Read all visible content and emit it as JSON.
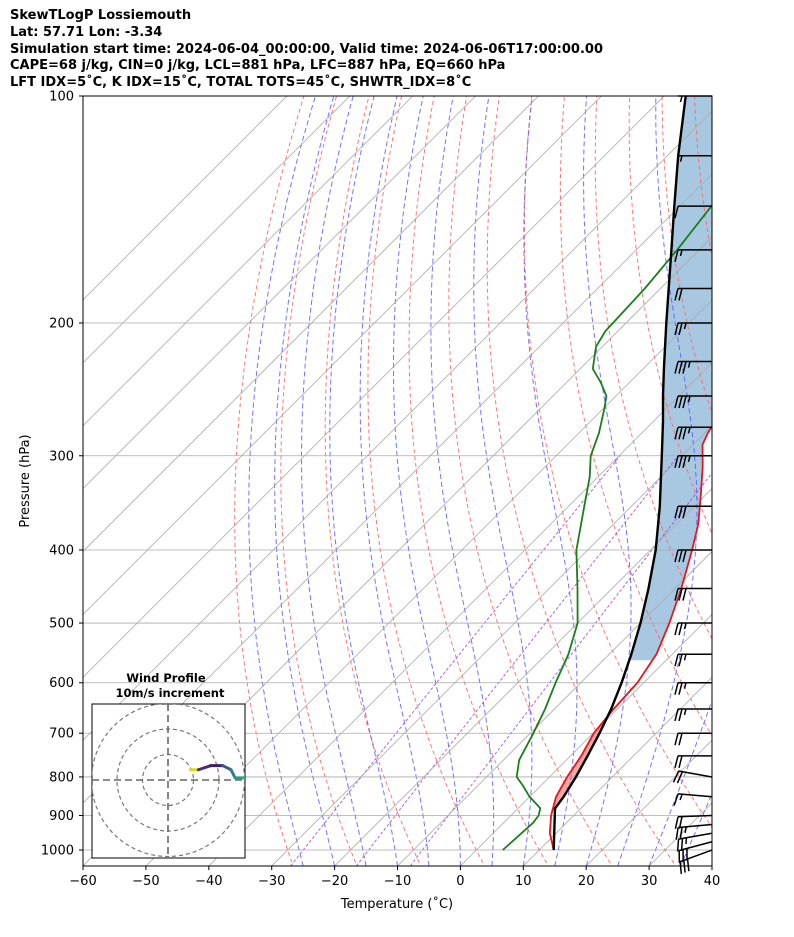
{
  "header": {
    "title": "SkewTLogP Lossiemouth",
    "coords": "Lat: 57.71   Lon: -3.34",
    "times": "Simulation start time: 2024-06-04_00:00:00, Valid time: 2024-06-06T17:00:00.00",
    "indices1": "CAPE=68 j/kg, CIN=0 j/kg, LCL=881 hPa, LFC=887 hPa, EQ=660 hPa",
    "indices2": "LFT IDX=5˚C, K IDX=15˚C, TOTAL TOTS=45˚C, SHWTR_IDX=8˚C"
  },
  "chart_data": {
    "type": "line",
    "subtype": "skew-t log-p",
    "xlabel": "Temperature (˚C)",
    "ylabel": "Pressure (hPa)",
    "xlim": [
      -60,
      40
    ],
    "ylim": [
      1050,
      100
    ],
    "y_scale": "log",
    "skew_deg": 45,
    "grid": true,
    "x_ticks": [
      -60,
      -50,
      -40,
      -30,
      -20,
      -10,
      0,
      10,
      20,
      30,
      40
    ],
    "y_ticks": [
      1000,
      900,
      800,
      700,
      600,
      500,
      400,
      300,
      200,
      100
    ],
    "series": [
      {
        "key": "temperature",
        "color": "#e8161b",
        "points": [
          [
            1000,
            12.3
          ],
          [
            950,
            9.0
          ],
          [
            900,
            6.4
          ],
          [
            850,
            4.2
          ],
          [
            800,
            2.8
          ],
          [
            750,
            1.7
          ],
          [
            700,
            0.1
          ],
          [
            650,
            -0.6
          ],
          [
            600,
            -1.0
          ],
          [
            550,
            -2.5
          ],
          [
            500,
            -5.4
          ],
          [
            450,
            -9.0
          ],
          [
            400,
            -13.4
          ],
          [
            370,
            -16.5
          ],
          [
            340,
            -20.5
          ],
          [
            310,
            -25.0
          ],
          [
            290,
            -28.5
          ],
          [
            280,
            -29.5
          ],
          [
            270,
            -30.2
          ],
          [
            250,
            -32.0
          ],
          [
            230,
            -34.0
          ],
          [
            210,
            -36.5
          ],
          [
            200,
            -38.4
          ],
          [
            180,
            -42.0
          ],
          [
            160,
            -45.5
          ],
          [
            145,
            -48.8
          ],
          [
            140,
            -50.6
          ],
          [
            130,
            -53.0
          ],
          [
            120,
            -53.8
          ],
          [
            115,
            -55.0
          ],
          [
            110,
            -56.2
          ],
          [
            100,
            -57.5
          ]
        ]
      },
      {
        "key": "dewpoint",
        "color": "#1a7f1a",
        "points": [
          [
            1000,
            4.2
          ],
          [
            950,
            4.5
          ],
          [
            920,
            4.7
          ],
          [
            900,
            4.4
          ],
          [
            880,
            3.5
          ],
          [
            850,
            0.0
          ],
          [
            820,
            -3.0
          ],
          [
            800,
            -5.2
          ],
          [
            760,
            -7.5
          ],
          [
            700,
            -9.5
          ],
          [
            650,
            -11.5
          ],
          [
            600,
            -14.0
          ],
          [
            550,
            -16.5
          ],
          [
            500,
            -20.0
          ],
          [
            450,
            -25.5
          ],
          [
            400,
            -31.8
          ],
          [
            350,
            -37.5
          ],
          [
            320,
            -41.3
          ],
          [
            300,
            -44.5
          ],
          [
            280,
            -46.8
          ],
          [
            260,
            -49.8
          ],
          [
            250,
            -51.5
          ],
          [
            240,
            -54.5
          ],
          [
            230,
            -58.0
          ],
          [
            215,
            -61.0
          ],
          [
            205,
            -62.0
          ],
          [
            180,
            -62.5
          ],
          [
            160,
            -63.5
          ],
          [
            140,
            -65.0
          ],
          [
            120,
            -66.5
          ],
          [
            100,
            -68.5
          ]
        ]
      },
      {
        "key": "parcel",
        "color": "#000000",
        "points": [
          [
            1000,
            12.3
          ],
          [
            881,
            5.9
          ],
          [
            850,
            5.4
          ],
          [
            800,
            4.2
          ],
          [
            750,
            2.7
          ],
          [
            700,
            1.0
          ],
          [
            650,
            -1.0
          ],
          [
            600,
            -3.5
          ],
          [
            550,
            -6.5
          ],
          [
            500,
            -10.0
          ],
          [
            450,
            -14.2
          ],
          [
            400,
            -19.2
          ],
          [
            350,
            -25.5
          ],
          [
            300,
            -33.2
          ],
          [
            270,
            -38.5
          ],
          [
            250,
            -42.5
          ],
          [
            230,
            -46.7
          ],
          [
            200,
            -53.6
          ],
          [
            180,
            -58.7
          ],
          [
            160,
            -64.4
          ],
          [
            140,
            -70.9
          ],
          [
            120,
            -78.3
          ],
          [
            100,
            -86.6
          ]
        ]
      }
    ],
    "shaded_regions": [
      {
        "key": "cape",
        "color": "#f4a3a3",
        "from_p": 887,
        "to_p": 660,
        "between": [
          "parcel",
          "temperature"
        ]
      },
      {
        "key": "upper",
        "color": "#a3c5e0",
        "from_p": 560,
        "to_p": 100,
        "between": [
          "temperature",
          "parcel"
        ]
      }
    ],
    "reference_lines": {
      "dry_adiabats_color": "#ff6666",
      "moist_adiabats_color": "#5a5aff",
      "mixing_ratio_color": "#9944cc",
      "isotherm_color": "#aaaaaa"
    },
    "wind_barbs": {
      "color": "#000000",
      "entries": [
        {
          "p": 1000,
          "speed_kt": 30,
          "dir_deg": 250
        },
        {
          "p": 975,
          "speed_kt": 30,
          "dir_deg": 255
        },
        {
          "p": 950,
          "speed_kt": 25,
          "dir_deg": 260
        },
        {
          "p": 925,
          "speed_kt": 25,
          "dir_deg": 265
        },
        {
          "p": 900,
          "speed_kt": 20,
          "dir_deg": 268
        },
        {
          "p": 850,
          "speed_kt": 15,
          "dir_deg": 275
        },
        {
          "p": 800,
          "speed_kt": 20,
          "dir_deg": 280
        },
        {
          "p": 750,
          "speed_kt": 20,
          "dir_deg": 270
        },
        {
          "p": 700,
          "speed_kt": 20,
          "dir_deg": 270
        },
        {
          "p": 650,
          "speed_kt": 25,
          "dir_deg": 270
        },
        {
          "p": 600,
          "speed_kt": 25,
          "dir_deg": 270
        },
        {
          "p": 550,
          "speed_kt": 25,
          "dir_deg": 270
        },
        {
          "p": 500,
          "speed_kt": 25,
          "dir_deg": 270
        },
        {
          "p": 450,
          "speed_kt": 30,
          "dir_deg": 270
        },
        {
          "p": 400,
          "speed_kt": 30,
          "dir_deg": 270
        },
        {
          "p": 350,
          "speed_kt": 30,
          "dir_deg": 270
        },
        {
          "p": 300,
          "speed_kt": 35,
          "dir_deg": 270
        },
        {
          "p": 275,
          "speed_kt": 35,
          "dir_deg": 270
        },
        {
          "p": 250,
          "speed_kt": 35,
          "dir_deg": 270
        },
        {
          "p": 225,
          "speed_kt": 35,
          "dir_deg": 270
        },
        {
          "p": 200,
          "speed_kt": 25,
          "dir_deg": 270
        },
        {
          "p": 180,
          "speed_kt": 20,
          "dir_deg": 270
        },
        {
          "p": 160,
          "speed_kt": 15,
          "dir_deg": 270
        },
        {
          "p": 140,
          "speed_kt": 10,
          "dir_deg": 270
        },
        {
          "p": 120,
          "speed_kt": 5,
          "dir_deg": 270
        },
        {
          "p": 100,
          "speed_kt": 5,
          "dir_deg": 270
        }
      ]
    },
    "inset": {
      "title": "Wind Profile",
      "subtitle": "10m/s increment",
      "rings": [
        1,
        2,
        3
      ],
      "hodograph": [
        {
          "u": 3,
          "v": 3,
          "color": "#e6e61a"
        },
        {
          "u": 5,
          "v": 3,
          "color": "#d4e21a"
        },
        {
          "u": 8,
          "v": 4,
          "color": "#4d2a7a"
        },
        {
          "u": 11,
          "v": 4,
          "color": "#402060"
        },
        {
          "u": 13,
          "v": 3,
          "color": "#3b5a8c"
        },
        {
          "u": 14,
          "v": 1,
          "color": "#2e7f8e"
        },
        {
          "u": 16,
          "v": 1,
          "color": "#2a9a86"
        },
        {
          "u": 18,
          "v": 2,
          "color": "#2fae7a"
        },
        {
          "u": 20,
          "v": 4,
          "color": "#3ab76f"
        },
        {
          "u": 21,
          "v": 5,
          "color": "#3ab76f"
        },
        {
          "u": 19,
          "v": 5,
          "color": "#44be66"
        },
        {
          "u": 18,
          "v": 4,
          "color": "#2a9a86"
        }
      ]
    }
  }
}
